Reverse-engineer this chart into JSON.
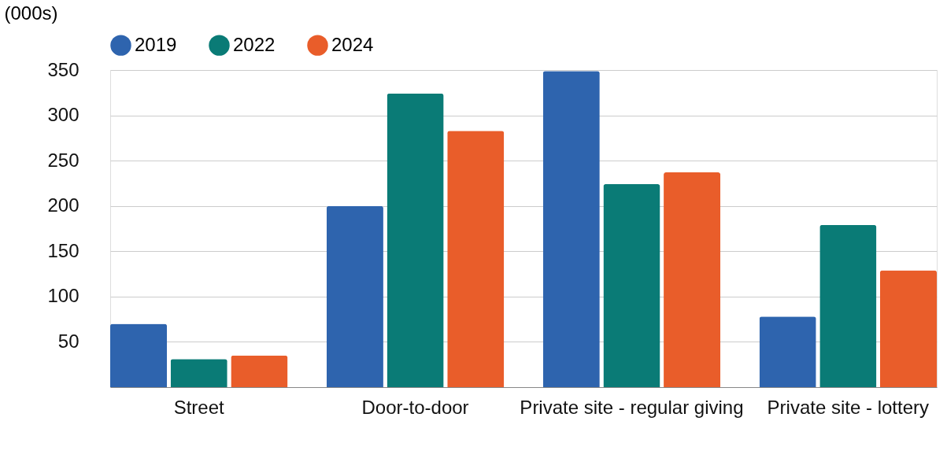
{
  "chart_data": {
    "type": "bar",
    "ylabel": "(000s)",
    "categories": [
      "Street",
      "Door-to-door",
      "Private site - regular giving",
      "Private site - lottery"
    ],
    "series": [
      {
        "name": "2019",
        "color": "#2e64ae",
        "values": [
          70,
          200,
          349,
          78
        ]
      },
      {
        "name": "2022",
        "color": "#0a7b76",
        "values": [
          31,
          324,
          224,
          179
        ]
      },
      {
        "name": "2024",
        "color": "#e95d2a",
        "values": [
          35,
          283,
          237,
          129
        ]
      }
    ],
    "ylim": [
      0,
      350
    ],
    "yticks": [
      50,
      100,
      150,
      200,
      250,
      300,
      350
    ],
    "grid": "y",
    "legend": "top"
  }
}
